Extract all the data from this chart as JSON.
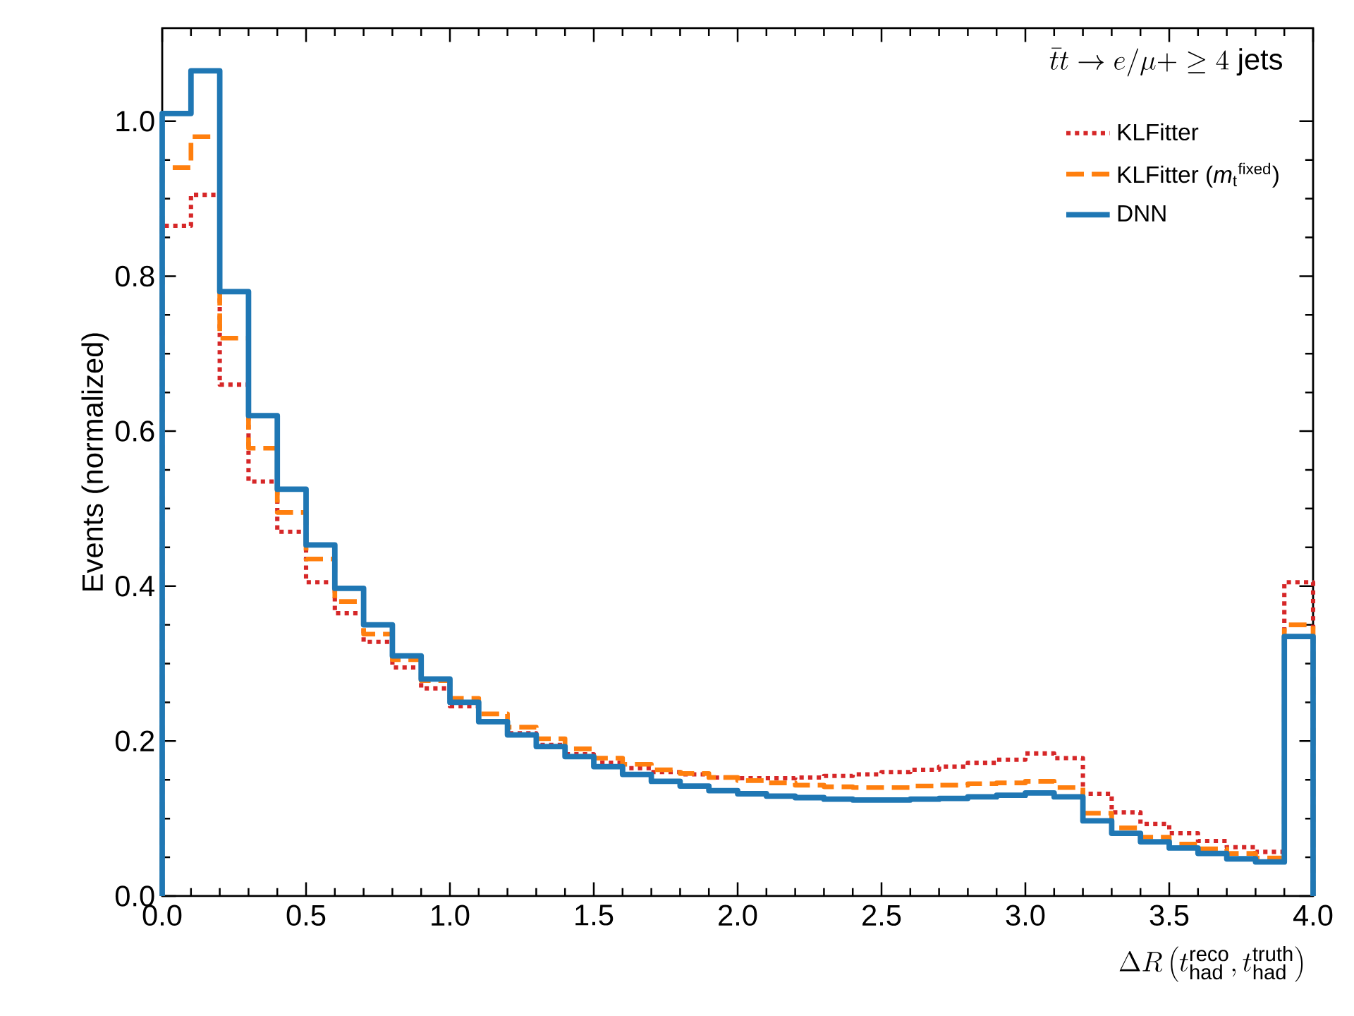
{
  "chart_data": {
    "type": "histogram",
    "legend_title": "\\bar{t}t \\rightarrow e/\\mu + \\geq 4~\\mathrm{jets}",
    "xlabel": "\\Delta R\\left(t_{\\mathrm{had}}^{\\mathrm{reco}}, t_{\\mathrm{had}}^{\\mathrm{truth}}\\right)",
    "ylabel": "Events (normalized)",
    "bins": [
      0.0,
      0.1,
      0.2,
      0.3,
      0.4,
      0.5,
      0.6,
      0.7,
      0.8,
      0.9,
      1.0,
      1.1,
      1.2,
      1.3,
      1.4,
      1.5,
      1.6,
      1.7,
      1.8,
      1.9,
      2.0,
      2.1,
      2.2,
      2.3,
      2.4,
      2.5,
      2.6,
      2.7,
      2.8,
      2.9,
      3.0,
      3.1,
      3.2,
      3.3,
      3.4,
      3.5,
      3.6,
      3.7,
      3.8,
      3.9,
      4.0
    ],
    "series": [
      {
        "name": "KLFitter",
        "color": "#d62728",
        "line_style": "dotted",
        "values": [
          0.865,
          0.905,
          0.66,
          0.535,
          0.47,
          0.405,
          0.365,
          0.328,
          0.295,
          0.268,
          0.245,
          0.225,
          0.21,
          0.195,
          0.183,
          0.172,
          0.165,
          0.16,
          0.157,
          0.153,
          0.152,
          0.152,
          0.153,
          0.155,
          0.157,
          0.16,
          0.163,
          0.167,
          0.172,
          0.176,
          0.184,
          0.178,
          0.132,
          0.108,
          0.093,
          0.081,
          0.071,
          0.063,
          0.057,
          0.405
        ]
      },
      {
        "name": "KLFitter (*m*$_{t}$$^{fixed}$)",
        "color": "#ff7f0e",
        "line_style": "dashed",
        "values": [
          0.94,
          0.98,
          0.72,
          0.578,
          0.495,
          0.435,
          0.38,
          0.338,
          0.305,
          0.278,
          0.255,
          0.235,
          0.218,
          0.203,
          0.19,
          0.178,
          0.17,
          0.163,
          0.158,
          0.153,
          0.149,
          0.146,
          0.143,
          0.141,
          0.14,
          0.14,
          0.142,
          0.143,
          0.145,
          0.146,
          0.148,
          0.14,
          0.107,
          0.088,
          0.076,
          0.067,
          0.061,
          0.055,
          0.049,
          0.35
        ]
      },
      {
        "name": "DNN",
        "color": "#1f77b4",
        "line_style": "solid",
        "values": [
          1.01,
          1.065,
          0.78,
          0.62,
          0.525,
          0.453,
          0.397,
          0.35,
          0.31,
          0.28,
          0.25,
          0.225,
          0.208,
          0.193,
          0.18,
          0.167,
          0.157,
          0.148,
          0.142,
          0.136,
          0.132,
          0.129,
          0.127,
          0.125,
          0.124,
          0.124,
          0.125,
          0.126,
          0.128,
          0.13,
          0.133,
          0.128,
          0.097,
          0.081,
          0.07,
          0.062,
          0.055,
          0.048,
          0.044,
          0.335
        ]
      }
    ],
    "xlim": [
      0.0,
      4.0
    ],
    "ylim": [
      0.0,
      1.12
    ],
    "xticks": [
      {
        "value": 0.0,
        "label": "0.0"
      },
      0.5,
      {
        "value": 1.0,
        "label": "1.0"
      },
      1.5,
      {
        "value": 2.0,
        "label": "2.0"
      },
      2.5,
      {
        "value": 3.0,
        "label": "3.0"
      },
      3.5,
      {
        "value": 4.0,
        "label": "4.0"
      }
    ],
    "yticks": [
      {
        "value": 0.0,
        "label": "0.0"
      },
      0.2,
      0.4,
      0.6,
      0.8,
      {
        "value": 1.0,
        "label": "1.0"
      }
    ],
    "grid": false,
    "legend": "top right"
  }
}
